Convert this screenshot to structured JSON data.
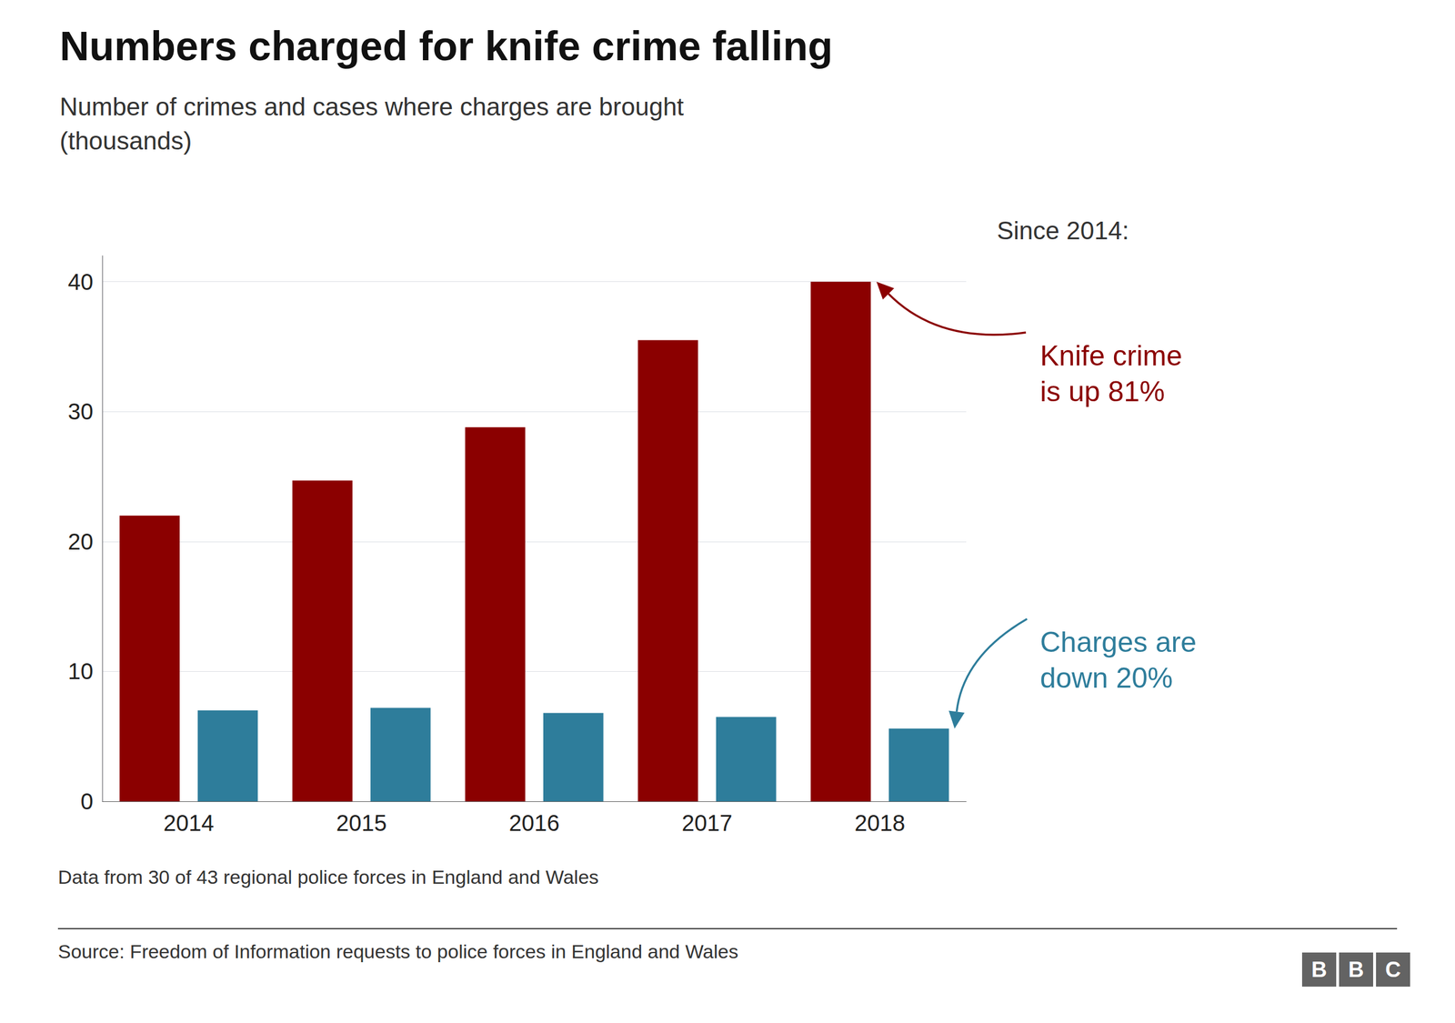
{
  "chart_data": {
    "type": "bar",
    "title": "Numbers charged for knife crime falling",
    "subtitle": "Number of crimes and cases where charges are brought\n(thousands)",
    "categories": [
      "2014",
      "2015",
      "2016",
      "2017",
      "2018"
    ],
    "series": [
      {
        "color": "#8B0000",
        "values": [
          22.0,
          24.7,
          28.8,
          35.5,
          40.0
        ]
      },
      {
        "color": "#2E7D9B",
        "values": [
          7.0,
          7.2,
          6.8,
          6.5,
          5.6
        ]
      }
    ],
    "ylim": [
      0,
      42
    ],
    "yticks": [
      0,
      10,
      20,
      30,
      40
    ],
    "grid": true,
    "annotations": [
      {
        "text": "Since 2014:",
        "color": "#333333"
      },
      {
        "text": "Knife crime\nis up 81%",
        "color": "#8B0000"
      },
      {
        "text": "Charges are\ndown 20%",
        "color": "#2E7D9B"
      }
    ],
    "footnote": "Data from 30 of 43 regional police forces in England and Wales",
    "source": "Source: Freedom of Information requests to police forces in England and Wales",
    "logo": [
      "B",
      "B",
      "C"
    ],
    "logo_color": "#636363"
  }
}
